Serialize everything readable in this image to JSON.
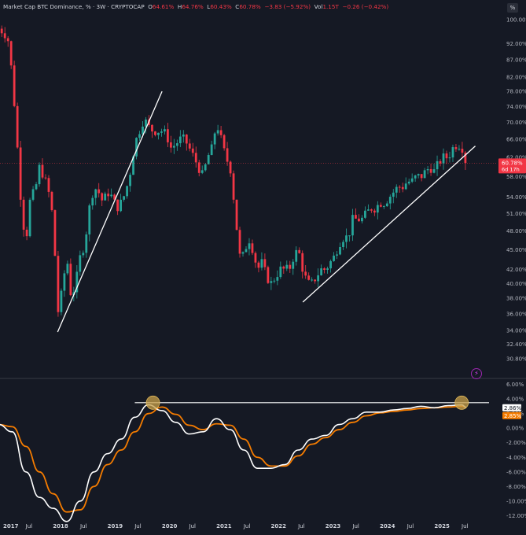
{
  "header": {
    "symbol_label": "Market Cap BTC Dominance, % · 3W · CRYPTOCAP",
    "open_label": "O",
    "open": "64.61%",
    "high_label": "H",
    "high": "64.76%",
    "low_label": "L",
    "low": "60.43%",
    "close_label": "C",
    "close": "60.78%",
    "change": "−3.83 (−5.92%)",
    "vol_label": "Vol",
    "vol": "1.15T",
    "vol_change": "−0.26 (−0.42%)"
  },
  "toolbar": {
    "percent_button": "%"
  },
  "colors": {
    "background": "#151924",
    "up": "#26a69a",
    "down": "#f23645",
    "macd_line": "#ffffff",
    "signal_line": "#f57c00",
    "trendline": "#ffffff",
    "highlight_circle": "#c8a04a",
    "price_tag": "#f23645"
  },
  "chart_data": [
    {
      "type": "candlestick",
      "x_start": "2016-12",
      "period": "3W",
      "y_scale": "log",
      "ylim": [
        29,
        102
      ],
      "y_ticks": [
        "100.00%",
        "92.00%",
        "87.00%",
        "82.00%",
        "78.00%",
        "74.00%",
        "70.00%",
        "66.00%",
        "62.00%",
        "58.00%",
        "54.00%",
        "51.00%",
        "48.00%",
        "45.00%",
        "42.00%",
        "40.00%",
        "38.00%",
        "36.00%",
        "34.00%",
        "32.40%",
        "30.80%"
      ],
      "x_ticks": [
        "2017",
        "Jul",
        "2018",
        "Jul",
        "2019",
        "Jul",
        "2020",
        "Jul",
        "2021",
        "Jul",
        "2022",
        "Jul",
        "2023",
        "Jul",
        "2024",
        "Jul",
        "2025",
        "Jul"
      ],
      "last_price": "60.78%",
      "countdown": "6d 17h",
      "close_path": [
        [
          "2016-12",
          97
        ],
        [
          "2017-01",
          96
        ],
        [
          "2017-02",
          94
        ],
        [
          "2017-03",
          82
        ],
        [
          "2017-04",
          66
        ],
        [
          "2017-05",
          52
        ],
        [
          "2017-06",
          46
        ],
        [
          "2017-07",
          54
        ],
        [
          "2017-08",
          55
        ],
        [
          "2017-09",
          60
        ],
        [
          "2017-10",
          58
        ],
        [
          "2017-11",
          55
        ],
        [
          "2017-12",
          50
        ],
        [
          "2018-01",
          36
        ],
        [
          "2018-02",
          39
        ],
        [
          "2018-03",
          44
        ],
        [
          "2018-04",
          38
        ],
        [
          "2018-05",
          40
        ],
        [
          "2018-06",
          44
        ],
        [
          "2018-07",
          46
        ],
        [
          "2018-08",
          52
        ],
        [
          "2018-09",
          56
        ],
        [
          "2018-10",
          55
        ],
        [
          "2018-11",
          53
        ],
        [
          "2018-12",
          55
        ],
        [
          "2019-01",
          54
        ],
        [
          "2019-02",
          52
        ],
        [
          "2019-03",
          53
        ],
        [
          "2019-04",
          55
        ],
        [
          "2019-05",
          59
        ],
        [
          "2019-06",
          65
        ],
        [
          "2019-07",
          68
        ],
        [
          "2019-08",
          71
        ],
        [
          "2019-09",
          69
        ],
        [
          "2019-10",
          68
        ],
        [
          "2019-11",
          68
        ],
        [
          "2019-12",
          68
        ],
        [
          "2020-01",
          67
        ],
        [
          "2020-02",
          64
        ],
        [
          "2020-03",
          65
        ],
        [
          "2020-04",
          66
        ],
        [
          "2020-05",
          66
        ],
        [
          "2020-06",
          64
        ],
        [
          "2020-07",
          62
        ],
        [
          "2020-08",
          60
        ],
        [
          "2020-09",
          58
        ],
        [
          "2020-10",
          62
        ],
        [
          "2020-11",
          64
        ],
        [
          "2020-12",
          70
        ],
        [
          "2021-01",
          66
        ],
        [
          "2021-02",
          62
        ],
        [
          "2021-03",
          60
        ],
        [
          "2021-04",
          52
        ],
        [
          "2021-05",
          44
        ],
        [
          "2021-06",
          44
        ],
        [
          "2021-07",
          47
        ],
        [
          "2021-08",
          45
        ],
        [
          "2021-09",
          42
        ],
        [
          "2021-10",
          43
        ],
        [
          "2021-11",
          41
        ],
        [
          "2021-12",
          40
        ],
        [
          "2022-01",
          41
        ],
        [
          "2022-02",
          42
        ],
        [
          "2022-03",
          42
        ],
        [
          "2022-04",
          42
        ],
        [
          "2022-05",
          44
        ],
        [
          "2022-06",
          45
        ],
        [
          "2022-07",
          42
        ],
        [
          "2022-08",
          40
        ],
        [
          "2022-09",
          40
        ],
        [
          "2022-10",
          41
        ],
        [
          "2022-11",
          42
        ],
        [
          "2022-12",
          42
        ],
        [
          "2023-01",
          43
        ],
        [
          "2023-02",
          44
        ],
        [
          "2023-03",
          46
        ],
        [
          "2023-04",
          47
        ],
        [
          "2023-05",
          47
        ],
        [
          "2023-06",
          50
        ],
        [
          "2023-07",
          50
        ],
        [
          "2023-08",
          50
        ],
        [
          "2023-09",
          51
        ],
        [
          "2023-10",
          52
        ],
        [
          "2023-11",
          52
        ],
        [
          "2023-12",
          53
        ],
        [
          "2024-01",
          53
        ],
        [
          "2024-02",
          54
        ],
        [
          "2024-03",
          55
        ],
        [
          "2024-04",
          56
        ],
        [
          "2024-05",
          56
        ],
        [
          "2024-06",
          57
        ],
        [
          "2024-07",
          57
        ],
        [
          "2024-08",
          58
        ],
        [
          "2024-09",
          58
        ],
        [
          "2024-10",
          59
        ],
        [
          "2024-11",
          60
        ],
        [
          "2024-12",
          59
        ],
        [
          "2025-01",
          61
        ],
        [
          "2025-02",
          62
        ],
        [
          "2025-03",
          62
        ],
        [
          "2025-04",
          64
        ],
        [
          "2025-05",
          65
        ],
        [
          "2025-06",
          64.6
        ],
        [
          "2025-07",
          60.8
        ]
      ],
      "trendlines": [
        {
          "from": [
            "2018-01",
            33.8
          ],
          "to": [
            "2019-12",
            78.0
          ]
        },
        {
          "from": [
            "2022-07",
            37.5
          ],
          "to": [
            "2025-09",
            64.5
          ]
        }
      ]
    },
    {
      "type": "line",
      "indicator": "oscillator",
      "ylim": [
        -12.5,
        6.5
      ],
      "y_ticks": [
        "6.00%",
        "4.00%",
        "2.00%",
        "0.00%",
        "-2.00%",
        "-4.00%",
        "-6.00%",
        "-8.00%",
        "-10.00%",
        "-12.00%"
      ],
      "series": [
        {
          "color": "#ffffff",
          "last": "2.86%",
          "values": [
            [
              "2016-12",
              0.5
            ],
            [
              "2017-03",
              -0.5
            ],
            [
              "2017-06",
              -6
            ],
            [
              "2017-09",
              -9.5
            ],
            [
              "2017-12",
              -11
            ],
            [
              "2018-03",
              -12.8
            ],
            [
              "2018-06",
              -10
            ],
            [
              "2018-09",
              -6
            ],
            [
              "2018-12",
              -3.5
            ],
            [
              "2019-03",
              -1.5
            ],
            [
              "2019-06",
              1.5
            ],
            [
              "2019-09",
              3.2
            ],
            [
              "2019-12",
              2.4
            ],
            [
              "2020-03",
              0.8
            ],
            [
              "2020-06",
              -0.8
            ],
            [
              "2020-09",
              -0.5
            ],
            [
              "2020-12",
              1.3
            ],
            [
              "2021-03",
              -0.2
            ],
            [
              "2021-06",
              -3
            ],
            [
              "2021-09",
              -5.5
            ],
            [
              "2021-12",
              -5.5
            ],
            [
              "2022-03",
              -5
            ],
            [
              "2022-06",
              -3
            ],
            [
              "2022-09",
              -1.5
            ],
            [
              "2022-12",
              -1
            ],
            [
              "2023-03",
              0.5
            ],
            [
              "2023-06",
              1.3
            ],
            [
              "2023-09",
              2.2
            ],
            [
              "2023-12",
              2.2
            ],
            [
              "2024-03",
              2.5
            ],
            [
              "2024-06",
              2.7
            ],
            [
              "2024-09",
              3
            ],
            [
              "2024-12",
              2.8
            ],
            [
              "2025-03",
              3.1
            ],
            [
              "2025-06",
              3.2
            ],
            [
              "2025-07",
              2.86
            ]
          ]
        },
        {
          "color": "#f57c00",
          "last": "2.85%",
          "values": [
            [
              "2016-12",
              0.5
            ],
            [
              "2017-03",
              0.2
            ],
            [
              "2017-06",
              -2.5
            ],
            [
              "2017-09",
              -6
            ],
            [
              "2017-12",
              -9
            ],
            [
              "2018-03",
              -11.5
            ],
            [
              "2018-06",
              -11.2
            ],
            [
              "2018-09",
              -8
            ],
            [
              "2018-12",
              -5
            ],
            [
              "2019-03",
              -3
            ],
            [
              "2019-06",
              -0.5
            ],
            [
              "2019-09",
              2
            ],
            [
              "2019-12",
              2.9
            ],
            [
              "2020-03",
              1.9
            ],
            [
              "2020-06",
              0.4
            ],
            [
              "2020-09",
              -0.2
            ],
            [
              "2020-12",
              0.6
            ],
            [
              "2021-03",
              0.4
            ],
            [
              "2021-06",
              -1.5
            ],
            [
              "2021-09",
              -4
            ],
            [
              "2021-12",
              -5.2
            ],
            [
              "2022-03",
              -5.2
            ],
            [
              "2022-06",
              -3.8
            ],
            [
              "2022-09",
              -2.2
            ],
            [
              "2022-12",
              -1.3
            ],
            [
              "2023-03",
              -0.2
            ],
            [
              "2023-06",
              0.8
            ],
            [
              "2023-09",
              1.7
            ],
            [
              "2023-12",
              2.1
            ],
            [
              "2024-03",
              2.3
            ],
            [
              "2024-06",
              2.5
            ],
            [
              "2024-09",
              2.7
            ],
            [
              "2024-12",
              2.8
            ],
            [
              "2025-03",
              2.9
            ],
            [
              "2025-06",
              3
            ],
            [
              "2025-07",
              2.85
            ]
          ]
        }
      ],
      "hline": 3.5,
      "highlights": [
        "2019-10",
        "2025-06"
      ]
    }
  ]
}
